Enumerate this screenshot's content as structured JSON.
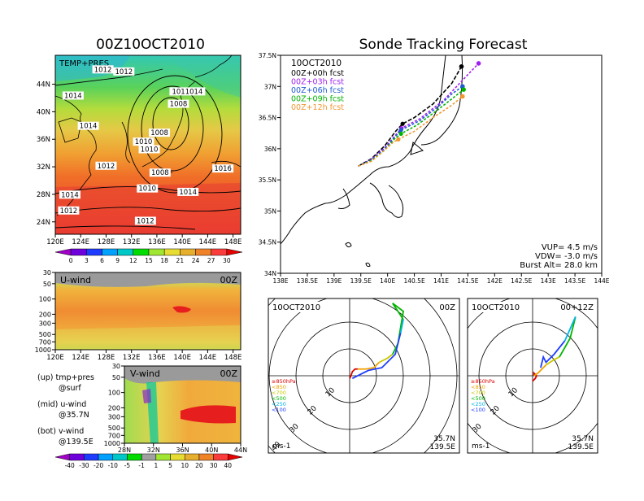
{
  "titles": {
    "left_main": "00Z10OCT2010",
    "right_main": "Sonde Tracking Forecast"
  },
  "temp_map": {
    "label": "TEMP+PRES",
    "lat_ticks": [
      "44N",
      "40N",
      "36N",
      "32N",
      "28N",
      "24N"
    ],
    "lon_ticks": [
      "120E",
      "124E",
      "128E",
      "132E",
      "136E",
      "140E",
      "144E",
      "148E"
    ],
    "pressure_labels": [
      {
        "text": "1012",
        "lon": 127.5,
        "lat": 45.8
      },
      {
        "text": "1012",
        "lon": 130.8,
        "lat": 45.5
      },
      {
        "text": "1014",
        "lon": 122.8,
        "lat": 42.0
      },
      {
        "text": "1014",
        "lon": 125.2,
        "lat": 37.6
      },
      {
        "text": "1011014",
        "lon": 140.8,
        "lat": 42.6
      },
      {
        "text": "1008",
        "lon": 139.4,
        "lat": 40.8
      },
      {
        "text": "1008",
        "lon": 136.4,
        "lat": 36.6
      },
      {
        "text": "1010",
        "lon": 133.9,
        "lat": 35.3
      },
      {
        "text": "1010",
        "lon": 134.8,
        "lat": 34.2
      },
      {
        "text": "1012",
        "lon": 128.0,
        "lat": 31.8
      },
      {
        "text": "1008",
        "lon": 136.5,
        "lat": 30.8
      },
      {
        "text": "1016",
        "lon": 146.4,
        "lat": 31.4
      },
      {
        "text": "1010",
        "lon": 134.5,
        "lat": 28.5
      },
      {
        "text": "1014",
        "lon": 140.9,
        "lat": 28.0
      },
      {
        "text": "1014",
        "lon": 122.3,
        "lat": 27.6
      },
      {
        "text": "1012",
        "lon": 122.1,
        "lat": 25.3
      },
      {
        "text": "1012",
        "lon": 134.2,
        "lat": 23.8
      }
    ]
  },
  "temp_colorbar": {
    "labels": [
      "0",
      "3",
      "6",
      "9",
      "12",
      "15",
      "18",
      "21",
      "24",
      "27",
      "30"
    ],
    "colors": [
      "#a000c8",
      "#6e00dc",
      "#1e3cff",
      "#00a0ff",
      "#00c8c8",
      "#00dc00",
      "#a0e632",
      "#e6dc32",
      "#e6af2d",
      "#f08228",
      "#fa3c3c",
      "#e60000"
    ]
  },
  "u_wind": {
    "label": "U-wind",
    "time": "00Z",
    "p_ticks": [
      "30",
      "50",
      "100",
      "200",
      "300",
      "500",
      "700",
      "1000"
    ],
    "lon_ticks": [
      "120E",
      "124E",
      "128E",
      "132E",
      "136E",
      "140E",
      "144E",
      "148E"
    ]
  },
  "v_wind": {
    "label": "V-wind",
    "time": "00Z",
    "p_ticks": [
      "30",
      "50",
      "100",
      "200",
      "300",
      "500",
      "700",
      "1000"
    ],
    "lat_ticks": [
      "28N",
      "32N",
      "36N",
      "40N",
      "44N"
    ]
  },
  "wind_colorbar": {
    "labels": [
      "-40",
      "-30",
      "-20",
      "-10",
      "-5",
      "-1",
      "1",
      "5",
      "10",
      "20",
      "30",
      "40"
    ],
    "colors": [
      "#a000c8",
      "#6e00dc",
      "#1e3cff",
      "#00a0ff",
      "#00c8c8",
      "#00dc00",
      "#a0a0a0",
      "#a0e632",
      "#e6dc32",
      "#e6af2d",
      "#f08228",
      "#fa3c3c",
      "#e60000"
    ]
  },
  "notes": {
    "up1": "(up) tmp+pres",
    "up2": "@surf",
    "mid1": "(mid) u-wind",
    "mid2": "@35.7N",
    "bot1": "(bot) v-wind",
    "bot2": "@139.5E"
  },
  "track": {
    "date": "10OCT2010",
    "lat_ticks": [
      "37.5N",
      "37N",
      "36.5N",
      "36N",
      "35.5N",
      "35N",
      "34.5N",
      "34N"
    ],
    "lon_ticks": [
      "138E",
      "138.5E",
      "139E",
      "139.5E",
      "140E",
      "140.5E",
      "141E",
      "141.5E",
      "142E",
      "142.5E",
      "143E",
      "143.5E",
      "144E"
    ],
    "vup": "VUP= 4.5 m/s",
    "vdw": "VDW= -3.0 m/s",
    "burst": "Burst Alt= 28.0 km"
  },
  "chart_data": [
    {
      "type": "line",
      "title": "Sonde Tracking Forecast",
      "xlabel": "",
      "ylabel": "",
      "xlim": [
        138.0,
        144.0
      ],
      "ylim": [
        34.0,
        37.5
      ],
      "series": [
        {
          "name": "00Z+00h fcst",
          "color": "#000000",
          "x": [
            139.45,
            139.7,
            139.95,
            140.15,
            140.28,
            140.5,
            140.85,
            141.2,
            141.38
          ],
          "y": [
            35.72,
            35.84,
            36.05,
            36.28,
            36.4,
            36.5,
            36.72,
            37.05,
            37.32
          ]
        },
        {
          "name": "00Z+03h fcst",
          "color": "#a020f0",
          "x": [
            139.45,
            139.7,
            139.95,
            140.15,
            140.26,
            140.6,
            141.05,
            141.4,
            141.7
          ],
          "y": [
            35.72,
            35.83,
            36.02,
            36.22,
            36.33,
            36.48,
            36.78,
            37.1,
            37.37
          ]
        },
        {
          "name": "00Z+06h fcst",
          "color": "#1e5ad2",
          "x": [
            139.45,
            139.7,
            139.95,
            140.15,
            140.25,
            140.6,
            140.95,
            141.2,
            141.4
          ],
          "y": [
            35.72,
            35.82,
            36.0,
            36.2,
            36.3,
            36.45,
            36.68,
            36.88,
            37.0
          ]
        },
        {
          "name": "00Z+09h fcst",
          "color": "#00b400",
          "x": [
            139.45,
            139.7,
            139.95,
            140.12,
            140.25,
            140.55,
            140.9,
            141.2,
            141.42
          ],
          "y": [
            35.72,
            35.81,
            35.98,
            36.15,
            36.24,
            36.38,
            36.6,
            36.8,
            36.95
          ]
        },
        {
          "name": "00Z+12h fcst",
          "color": "#f09632",
          "x": [
            139.45,
            139.7,
            139.92,
            140.1,
            140.2,
            140.5,
            140.85,
            141.2,
            141.4
          ],
          "y": [
            35.72,
            35.8,
            35.96,
            36.1,
            36.15,
            36.28,
            36.5,
            36.7,
            36.84
          ]
        }
      ]
    },
    {
      "type": "hodograph",
      "date": "10OCT2010",
      "time": "00Z",
      "site_lat": "35.7N",
      "site_lon": "139.5E",
      "units": "ms-1",
      "rings": [
        "10",
        "20",
        "30",
        "40"
      ],
      "legend": [
        {
          "text": "≥850hPa",
          "color": "#dc0000"
        },
        {
          "text": "<850",
          "color": "#f0a000"
        },
        {
          "text": "<700",
          "color": "#c8c800"
        },
        {
          "text": "<500",
          "color": "#00b400"
        },
        {
          "text": "<250",
          "color": "#00b4e6"
        },
        {
          "text": "<100",
          "color": "#1e3cff"
        }
      ],
      "segments": [
        {
          "color": "#dc0000",
          "u": [
            0,
            0.5,
            1,
            2,
            3
          ],
          "v": [
            -1,
            0,
            1.5,
            2.5,
            2.5
          ]
        },
        {
          "color": "#f0a000",
          "u": [
            3,
            6,
            9,
            11
          ],
          "v": [
            2.5,
            2.5,
            3,
            5
          ]
        },
        {
          "color": "#c8c800",
          "u": [
            11,
            14,
            16
          ],
          "v": [
            5,
            6.5,
            8
          ]
        },
        {
          "color": "#00b400",
          "u": [
            16,
            18,
            20,
            16,
            20
          ],
          "v": [
            8,
            12,
            24,
            27,
            21
          ]
        },
        {
          "color": "#00b4e6",
          "u": [
            20,
            19
          ],
          "v": [
            21,
            16
          ]
        },
        {
          "color": "#1e3cff",
          "u": [
            19,
            17,
            12,
            7,
            4,
            1
          ],
          "v": [
            16,
            8,
            3,
            2,
            0.5,
            -1
          ]
        }
      ]
    },
    {
      "type": "hodograph",
      "date": "10OCT2010",
      "time": "00+12Z",
      "site_lat": "35.7N",
      "site_lon": "139.5E",
      "units": "ms-1",
      "rings": [
        "10",
        "20",
        "30",
        "40"
      ],
      "legend": [
        {
          "text": "≥850hPa",
          "color": "#dc0000"
        },
        {
          "text": "<850",
          "color": "#f0a000"
        },
        {
          "text": "<700",
          "color": "#c8c800"
        },
        {
          "text": "<500",
          "color": "#00b400"
        },
        {
          "text": "<250",
          "color": "#00b4e6"
        },
        {
          "text": "<100",
          "color": "#1e3cff"
        }
      ],
      "segments": [
        {
          "color": "#dc0000",
          "u": [
            0,
            1,
            1.5,
            0.5,
            0.5
          ],
          "v": [
            -2,
            -1,
            0,
            1,
            0
          ]
        },
        {
          "color": "#f0a000",
          "u": [
            0.5,
            2,
            3,
            5
          ],
          "v": [
            0,
            1,
            2,
            4
          ]
        },
        {
          "color": "#c8c800",
          "u": [
            5,
            8,
            10
          ],
          "v": [
            4,
            6,
            7
          ]
        },
        {
          "color": "#00b400",
          "u": [
            10,
            14,
            16
          ],
          "v": [
            7,
            14,
            22
          ]
        },
        {
          "color": "#00b4e6",
          "u": [
            16,
            12
          ],
          "v": [
            22,
            13
          ]
        },
        {
          "color": "#1e3cff",
          "u": [
            12,
            8,
            5,
            4,
            3
          ],
          "v": [
            13,
            8,
            5,
            7,
            3
          ]
        }
      ]
    }
  ]
}
